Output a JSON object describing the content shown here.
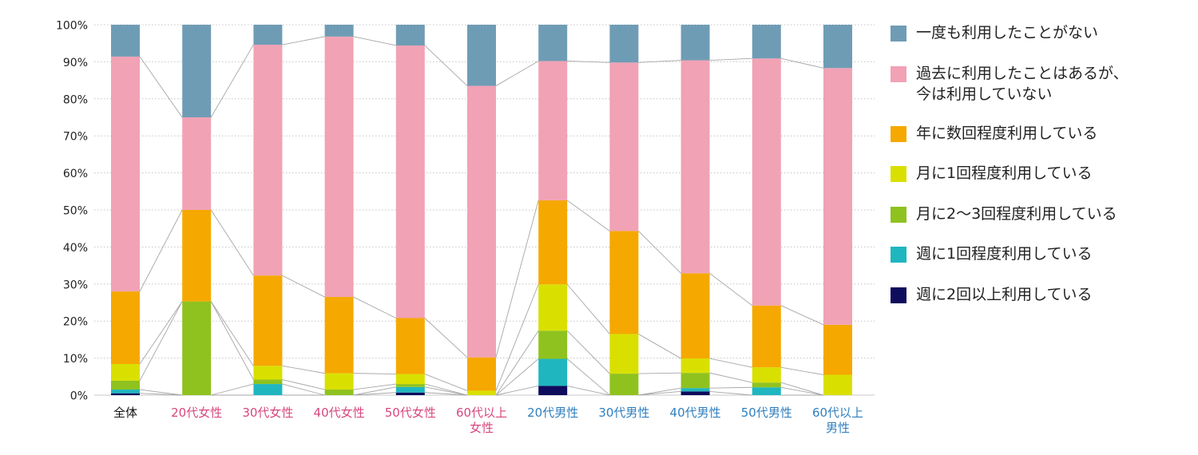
{
  "chart_data": {
    "type": "bar",
    "stacked": true,
    "categories": [
      "全体",
      "20代女性",
      "30代女性",
      "40代女性",
      "50代女性",
      "60代以上\n女性",
      "20代男性",
      "30代男性",
      "40代男性",
      "50代男性",
      "60代以上\n男性"
    ],
    "category_colors": [
      "#111111",
      "#d6477e",
      "#d6477e",
      "#d6477e",
      "#d6477e",
      "#d6477e",
      "#2f7fbf",
      "#2f7fbf",
      "#2f7fbf",
      "#2f7fbf",
      "#2f7fbf"
    ],
    "series": [
      {
        "name": "週に2回以上利用している",
        "color": "#0e0c5c",
        "values": [
          0.5,
          0,
          0,
          0,
          0.7,
          0,
          2.5,
          0,
          1.0,
          0,
          0
        ]
      },
      {
        "name": "週に1回程度利用している",
        "color": "#1fb6bf",
        "values": [
          1.0,
          0,
          3.0,
          0,
          1.5,
          0,
          7.3,
          0,
          0.9,
          2.1,
          0
        ]
      },
      {
        "name": "月に2〜3回程度利用している",
        "color": "#8fc21f",
        "values": [
          2.4,
          25.3,
          1.2,
          1.5,
          0.8,
          0,
          7.6,
          5.8,
          4.1,
          1.3,
          0
        ]
      },
      {
        "name": "月に1回程度利用している",
        "color": "#d9e000",
        "values": [
          4.5,
          0,
          3.7,
          4.4,
          2.7,
          1.2,
          12.5,
          10.7,
          3.9,
          4.1,
          5.5
        ]
      },
      {
        "name": "年に数回程度利用している",
        "color": "#f5a800",
        "values": [
          19.6,
          24.7,
          24.4,
          20.6,
          15.1,
          9.0,
          22.7,
          27.8,
          23.0,
          16.7,
          13.5
        ]
      },
      {
        "name": "過去に利用したことはあるが、\n今は利用していない",
        "color": "#f1a2b5",
        "values": [
          63.4,
          25.0,
          62.3,
          70.3,
          73.6,
          73.3,
          37.6,
          45.5,
          57.5,
          66.7,
          69.3
        ]
      },
      {
        "name": "一度も利用したことがない",
        "color": "#6f9cb5",
        "values": [
          8.6,
          25.0,
          5.4,
          3.2,
          5.6,
          16.5,
          9.8,
          10.2,
          9.6,
          9.1,
          11.7
        ]
      }
    ],
    "y_tick_labels": [
      "0%",
      "10%",
      "20%",
      "30%",
      "40%",
      "50%",
      "60%",
      "70%",
      "80%",
      "90%",
      "100%"
    ],
    "ylim": [
      0,
      100
    ],
    "grid": true,
    "legend_position": "right",
    "connector_lines": true
  },
  "legend": [
    {
      "label": "一度も利用したことがない",
      "color": "#6f9cb5"
    },
    {
      "label": "過去に利用したことはあるが、\n今は利用していない",
      "color": "#f1a2b5"
    },
    {
      "label": "年に数回程度利用している",
      "color": "#f5a800"
    },
    {
      "label": "月に1回程度利用している",
      "color": "#d9e000"
    },
    {
      "label": "月に2〜3回程度利用している",
      "color": "#8fc21f"
    },
    {
      "label": "週に1回程度利用している",
      "color": "#1fb6bf"
    },
    {
      "label": "週に2回以上利用している",
      "color": "#0e0c5c"
    }
  ]
}
